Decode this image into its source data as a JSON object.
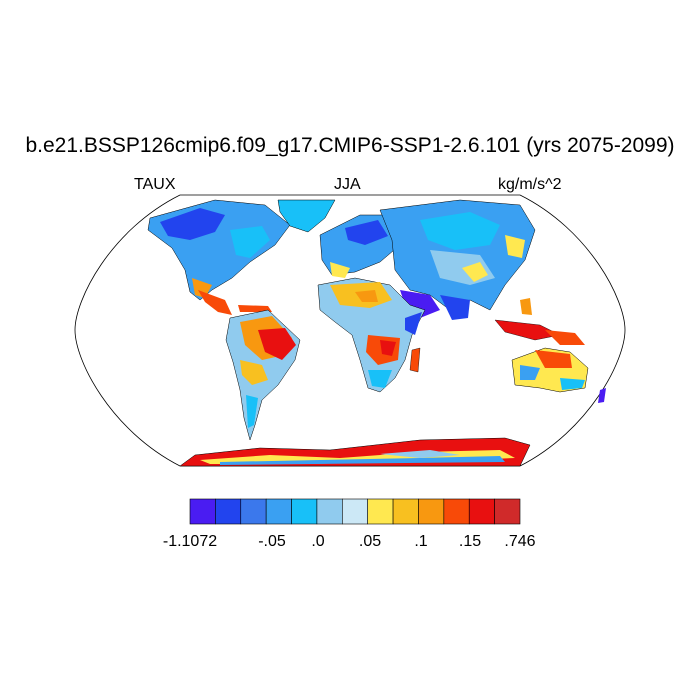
{
  "title": "b.e21.BSSP126cmip6.f09_g17.CMIP6-SSP1-2.6.101 (yrs 2075-2099)",
  "subtitles": {
    "left": "TAUX",
    "center": "JJA",
    "right": "kg/m/s^2"
  },
  "colorbar": {
    "colors": [
      "#4a1cf2",
      "#2244ee",
      "#3b78ec",
      "#3aa0f2",
      "#18c0f8",
      "#90cbee",
      "#cce8f6",
      "#ffe850",
      "#f8c020",
      "#f89810",
      "#f84a08",
      "#e81010",
      "#d02a2a"
    ],
    "labels": [
      "-1.1072",
      "-.05",
      ".0",
      ".05",
      ".1",
      ".15",
      ".746"
    ]
  },
  "map": {
    "projection": "robinson",
    "ocean_color": "#ffffff",
    "outline_color": "#000000"
  }
}
